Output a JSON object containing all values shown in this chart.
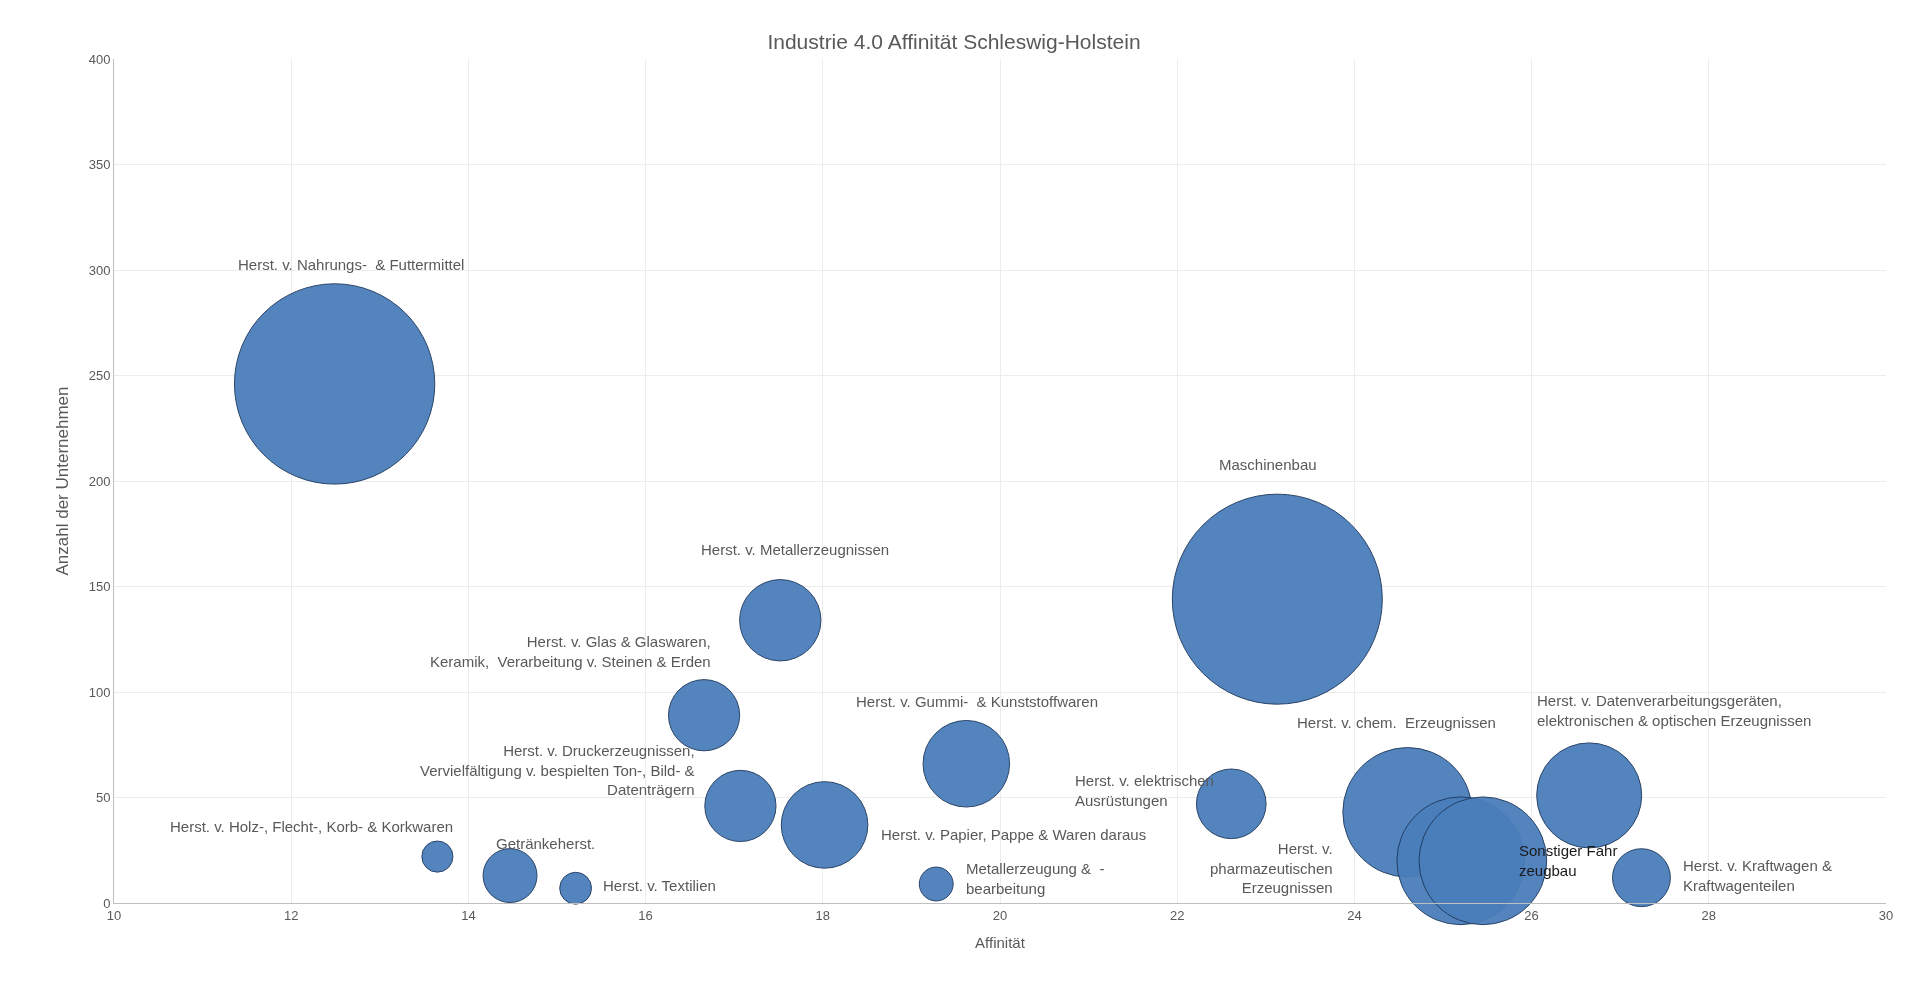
{
  "chart_data": {
    "type": "bubble",
    "title": "Industrie 4.0 Affinität Schleswig-Holstein",
    "xlabel": "Affinität",
    "ylabel": "Anzahl der Unternehmen",
    "x": [
      12.49,
      23.13,
      17.52,
      16.66,
      17.07,
      13.65,
      14.47,
      15.21,
      18.02,
      19.28,
      19.62,
      22.61,
      24.6,
      25.2,
      25.45,
      26.65,
      27.24
    ],
    "series": [
      {
        "color": "#4a7ebb",
        "values": [
          246,
          144,
          134,
          89,
          46,
          22,
          13,
          7,
          37,
          9,
          66,
          47,
          43,
          20,
          20,
          51,
          12
        ],
        "sizes": [
          0.91,
          1,
          0.15,
          0.115,
          0.115,
          0.022,
          0.066,
          0.023,
          0.17,
          0.026,
          0.17,
          0.11,
          0.38,
          0.37,
          0.37,
          0.25,
          0.076
        ]
      }
    ],
    "annotations": [
      "Herst. v. Nahrungs-  & Futtermittel",
      "Maschinenbau",
      "Herst. v. Metallerzeugnissen",
      "Herst. v. Glas & Glaswaren,\nKeramik,  Verarbeitung v. Steinen & Erden",
      "Herst. v. Druckerzeugnissen,\nVervielfältigung v. bespielten Ton-, Bild- &\nDatenträgern",
      "Herst. v. Holz-, Flecht-, Korb- & Korkwaren",
      "Getränkeherst.",
      "Herst. v. Textilien",
      "Herst. v. Papier, Pappe & Waren daraus",
      "Metallerzeugung &  -\nbearbeitung",
      "Herst. v. Gummi-  & Kunststoffwaren",
      "Herst. v. elektrischen\nAusrüstungen",
      "Herst. v. chem.  Erzeugnissen",
      "Herst. v.\npharmazeutischen\nErzeugnissen",
      "Sonstiger Fahr\nzeugbau",
      "Herst. v. Datenverarbeitungsgeräten,\nelektronischen & optischen Erzeugnissen",
      "Herst. v. Kraftwagen &\nKraftwagenteilen"
    ],
    "xlim": [
      10,
      30
    ],
    "xticks": [
      10,
      12,
      14,
      16,
      18,
      20,
      22,
      24,
      26,
      28,
      30
    ],
    "ylim": [
      0,
      400
    ],
    "yticks": [
      0,
      50,
      100,
      150,
      200,
      250,
      300,
      350,
      400
    ],
    "grid": true
  }
}
